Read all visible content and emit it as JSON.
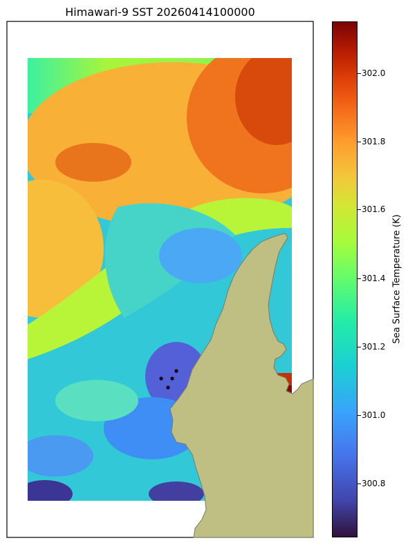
{
  "title": "Himawari-9 SST 20260414100000",
  "colorbar": {
    "label": "Sea Surface Temperature (K)",
    "range": [
      300.64,
      302.16
    ],
    "colormap": "turbo",
    "ticks": [
      "302.0",
      "301.8",
      "301.6",
      "301.4",
      "301.2",
      "301.0",
      "300.8"
    ]
  },
  "map": {
    "land_color": "#bfbf84",
    "coast_color": "#7a7a62",
    "ocean_background": "#ffffff",
    "point_markers": 4
  }
}
